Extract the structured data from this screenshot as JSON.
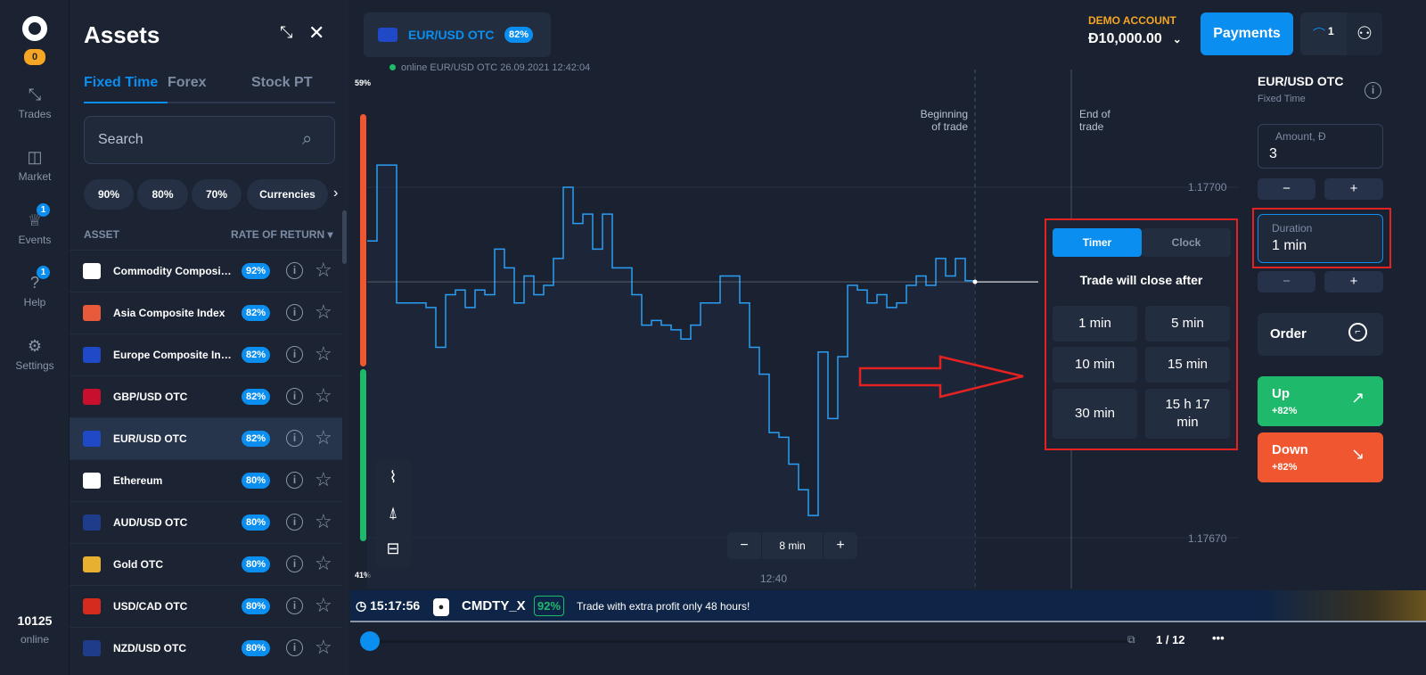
{
  "nav": {
    "level_badge": "0",
    "items": [
      {
        "label": "Trades",
        "icon": "arrows-icon"
      },
      {
        "label": "Market",
        "icon": "bag-icon"
      },
      {
        "label": "Events",
        "icon": "trophy-icon",
        "badge": "1"
      },
      {
        "label": "Help",
        "icon": "question-icon",
        "badge": "1"
      },
      {
        "label": "Settings",
        "icon": "gear-icon"
      }
    ],
    "online_count": "10125",
    "online_label": "online"
  },
  "assets": {
    "title": "Assets",
    "tabs": [
      "Fixed Time",
      "Forex",
      "Stock PT"
    ],
    "search_placeholder": "Search",
    "chips": [
      "90%",
      "80%",
      "70%",
      "Currencies"
    ],
    "col_asset": "ASSET",
    "col_return": "RATE OF RETURN",
    "rows": [
      {
        "name": "Commodity Composite Index",
        "pct": "92%",
        "icon_color": "#ffffff"
      },
      {
        "name": "Asia Composite Index",
        "pct": "82%",
        "icon_color": "#e85a3a"
      },
      {
        "name": "Europe Composite Index",
        "pct": "82%",
        "icon_color": "#1f49c7"
      },
      {
        "name": "GBP/USD OTC",
        "pct": "82%",
        "icon_color": "#c8102e"
      },
      {
        "name": "EUR/USD OTC",
        "pct": "82%",
        "icon_color": "#1f49c7",
        "selected": true
      },
      {
        "name": "Ethereum",
        "pct": "80%",
        "icon_color": "#ffffff"
      },
      {
        "name": "AUD/USD OTC",
        "pct": "80%",
        "icon_color": "#1f3c8a"
      },
      {
        "name": "Gold OTC",
        "pct": "80%",
        "icon_color": "#e8b030"
      },
      {
        "name": "USD/CAD OTC",
        "pct": "80%",
        "icon_color": "#d52b1e"
      },
      {
        "name": "NZD/USD OTC",
        "pct": "80%",
        "icon_color": "#1f3c8a"
      }
    ]
  },
  "chart": {
    "asset_tab": "EUR/USD OTC",
    "asset_pct": "82%",
    "status": "online EUR/USD OTC  26.09.2021 12:42:04",
    "top_pct": "59%",
    "bottom_pct": "41%",
    "beginning_label": "Beginning of trade",
    "end_label": "End of trade",
    "time_label": "12:40",
    "zoom_label": "8 min",
    "zoom_minus": "−",
    "zoom_plus": "+"
  },
  "chart_data": {
    "type": "line",
    "y_ticks": [
      "1.17700",
      "1.17670"
    ],
    "ylim": [
      1.1767,
      1.177
    ],
    "x_tick": "12:40",
    "current_price": 1.176919,
    "values": [
      1.176954,
      1.177019,
      1.177019,
      1.176901,
      1.176901,
      1.176901,
      1.176897,
      1.176863,
      1.176908,
      1.176912,
      1.176897,
      1.176912,
      1.176908,
      1.176947,
      1.176931,
      1.176901,
      1.176924,
      1.176908,
      1.176916,
      1.176939,
      1.177,
      1.176969,
      1.176977,
      1.176947,
      1.176977,
      1.176931,
      1.176931,
      1.176908,
      1.176882,
      1.176886,
      1.176882,
      1.176878,
      1.17687,
      1.176882,
      1.176901,
      1.176901,
      1.176924,
      1.176924,
      1.176901,
      1.176863,
      1.17684,
      1.17679,
      1.176786,
      1.176763,
      1.176741,
      1.176719,
      1.176859,
      1.176802,
      1.176855,
      1.176916,
      1.176912,
      1.176901,
      1.176908,
      1.176897,
      1.176901,
      1.176916,
      1.176924,
      1.176916,
      1.176939,
      1.176924,
      1.176939,
      1.17692,
      1.176919
    ]
  },
  "timer_popup": {
    "tabs": [
      "Timer",
      "Clock"
    ],
    "title": "Trade will close after",
    "options": [
      "1 min",
      "5 min",
      "10 min",
      "15 min",
      "30 min",
      "15 h 17 min"
    ]
  },
  "header": {
    "account_type": "DEMO ACCOUNT",
    "balance": "Đ10,000.00",
    "payments": "Payments",
    "notif_count": "1"
  },
  "trade": {
    "asset": "EUR/USD OTC",
    "mode": "Fixed Time",
    "amount_label": "Amount, Đ",
    "amount": "3",
    "duration_label": "Duration",
    "duration": "1 min",
    "minus": "−",
    "plus": "+",
    "order": "Order",
    "up": "Up",
    "up_pct": "+82%",
    "down": "Down",
    "down_pct": "+82%",
    "up_color": "#1fb96c",
    "down_color": "#f0562f"
  },
  "banner": {
    "timer": "15:17:56",
    "asset": "CMDTY_X",
    "pct": "92%",
    "text": "Trade with extra profit only 48 hours!"
  },
  "bottom": {
    "page": "1 / 12",
    "more": "•••"
  }
}
